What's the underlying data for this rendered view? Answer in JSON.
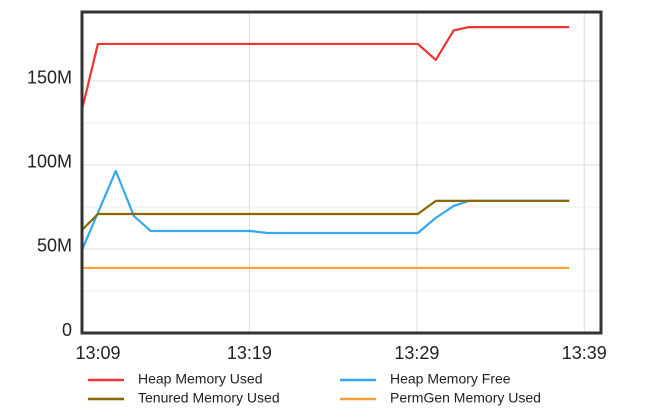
{
  "chart_data": {
    "type": "line",
    "xlim": [
      789,
      820
    ],
    "xticks": [
      {
        "value": 789,
        "label": "13:09"
      },
      {
        "value": 799,
        "label": "13:19"
      },
      {
        "value": 809,
        "label": "13:29"
      },
      {
        "value": 819,
        "label": "13:39"
      }
    ],
    "ylim": [
      0,
      191
    ],
    "yticks": [
      {
        "value": 0,
        "label": "0"
      },
      {
        "value": 50,
        "label": "50M"
      },
      {
        "value": 100,
        "label": "100M"
      },
      {
        "value": 150,
        "label": "150M"
      }
    ],
    "grid": true,
    "series": [
      {
        "name": "Heap Memory Used",
        "color": "#ee3333",
        "x": [
          789,
          789.95,
          809.06,
          810.13,
          811.2,
          812.1,
          818.1
        ],
        "values": [
          133,
          172,
          172,
          162.5,
          180,
          182,
          182
        ]
      },
      {
        "name": "Heap Memory Free",
        "color": "#33aaee",
        "x": [
          789,
          791.02,
          792.1,
          793.1,
          799.06,
          800.07,
          809.06,
          810.13,
          811.2,
          812.1,
          818.1
        ],
        "values": [
          49.4,
          96.4,
          69.6,
          60.7,
          60.7,
          59.5,
          59.5,
          68.5,
          75.6,
          78.6,
          78.6
        ]
      },
      {
        "name": "Tenured Memory Used",
        "color": "#886600",
        "x": [
          789,
          789.95,
          809.06,
          810.13,
          818.1
        ],
        "values": [
          61.3,
          70.8,
          70.8,
          78.6,
          78.6
        ]
      },
      {
        "name": "PermGen Memory Used",
        "color": "#f5a033",
        "x": [
          789,
          818.1
        ],
        "values": [
          38.7,
          38.7
        ]
      }
    ]
  }
}
